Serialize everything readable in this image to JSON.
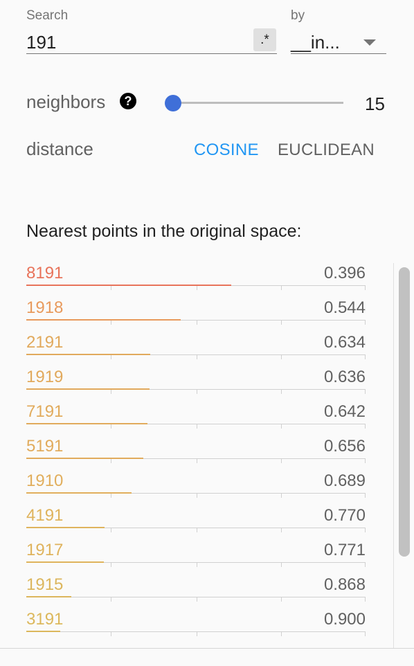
{
  "search": {
    "label": "Search",
    "value": "191",
    "regex_label": ".*"
  },
  "by": {
    "label": "by",
    "value": "__in..."
  },
  "neighbors": {
    "label": "neighbors",
    "help_glyph": "?",
    "value": "15",
    "slider_fraction": 0.0
  },
  "distance": {
    "label": "distance",
    "options": [
      "COSINE",
      "EUCLIDEAN"
    ],
    "selected": "COSINE"
  },
  "nearest": {
    "title": "Nearest points in the original space:",
    "rows": [
      {
        "name": "8191",
        "value": "0.396",
        "color": "#e8735a"
      },
      {
        "name": "1918",
        "value": "0.544",
        "color": "#e89a5c"
      },
      {
        "name": "2191",
        "value": "0.634",
        "color": "#e1a95c"
      },
      {
        "name": "1919",
        "value": "0.636",
        "color": "#e1a95c"
      },
      {
        "name": "7191",
        "value": "0.642",
        "color": "#e1ab5c"
      },
      {
        "name": "5191",
        "value": "0.656",
        "color": "#e1ab5c"
      },
      {
        "name": "1910",
        "value": "0.689",
        "color": "#e1ae5c"
      },
      {
        "name": "4191",
        "value": "0.770",
        "color": "#dfb35c"
      },
      {
        "name": "1917",
        "value": "0.771",
        "color": "#dfb35c"
      },
      {
        "name": "1915",
        "value": "0.868",
        "color": "#dcb65c"
      },
      {
        "name": "3191",
        "value": "0.900",
        "color": "#dcb85c"
      }
    ]
  }
}
